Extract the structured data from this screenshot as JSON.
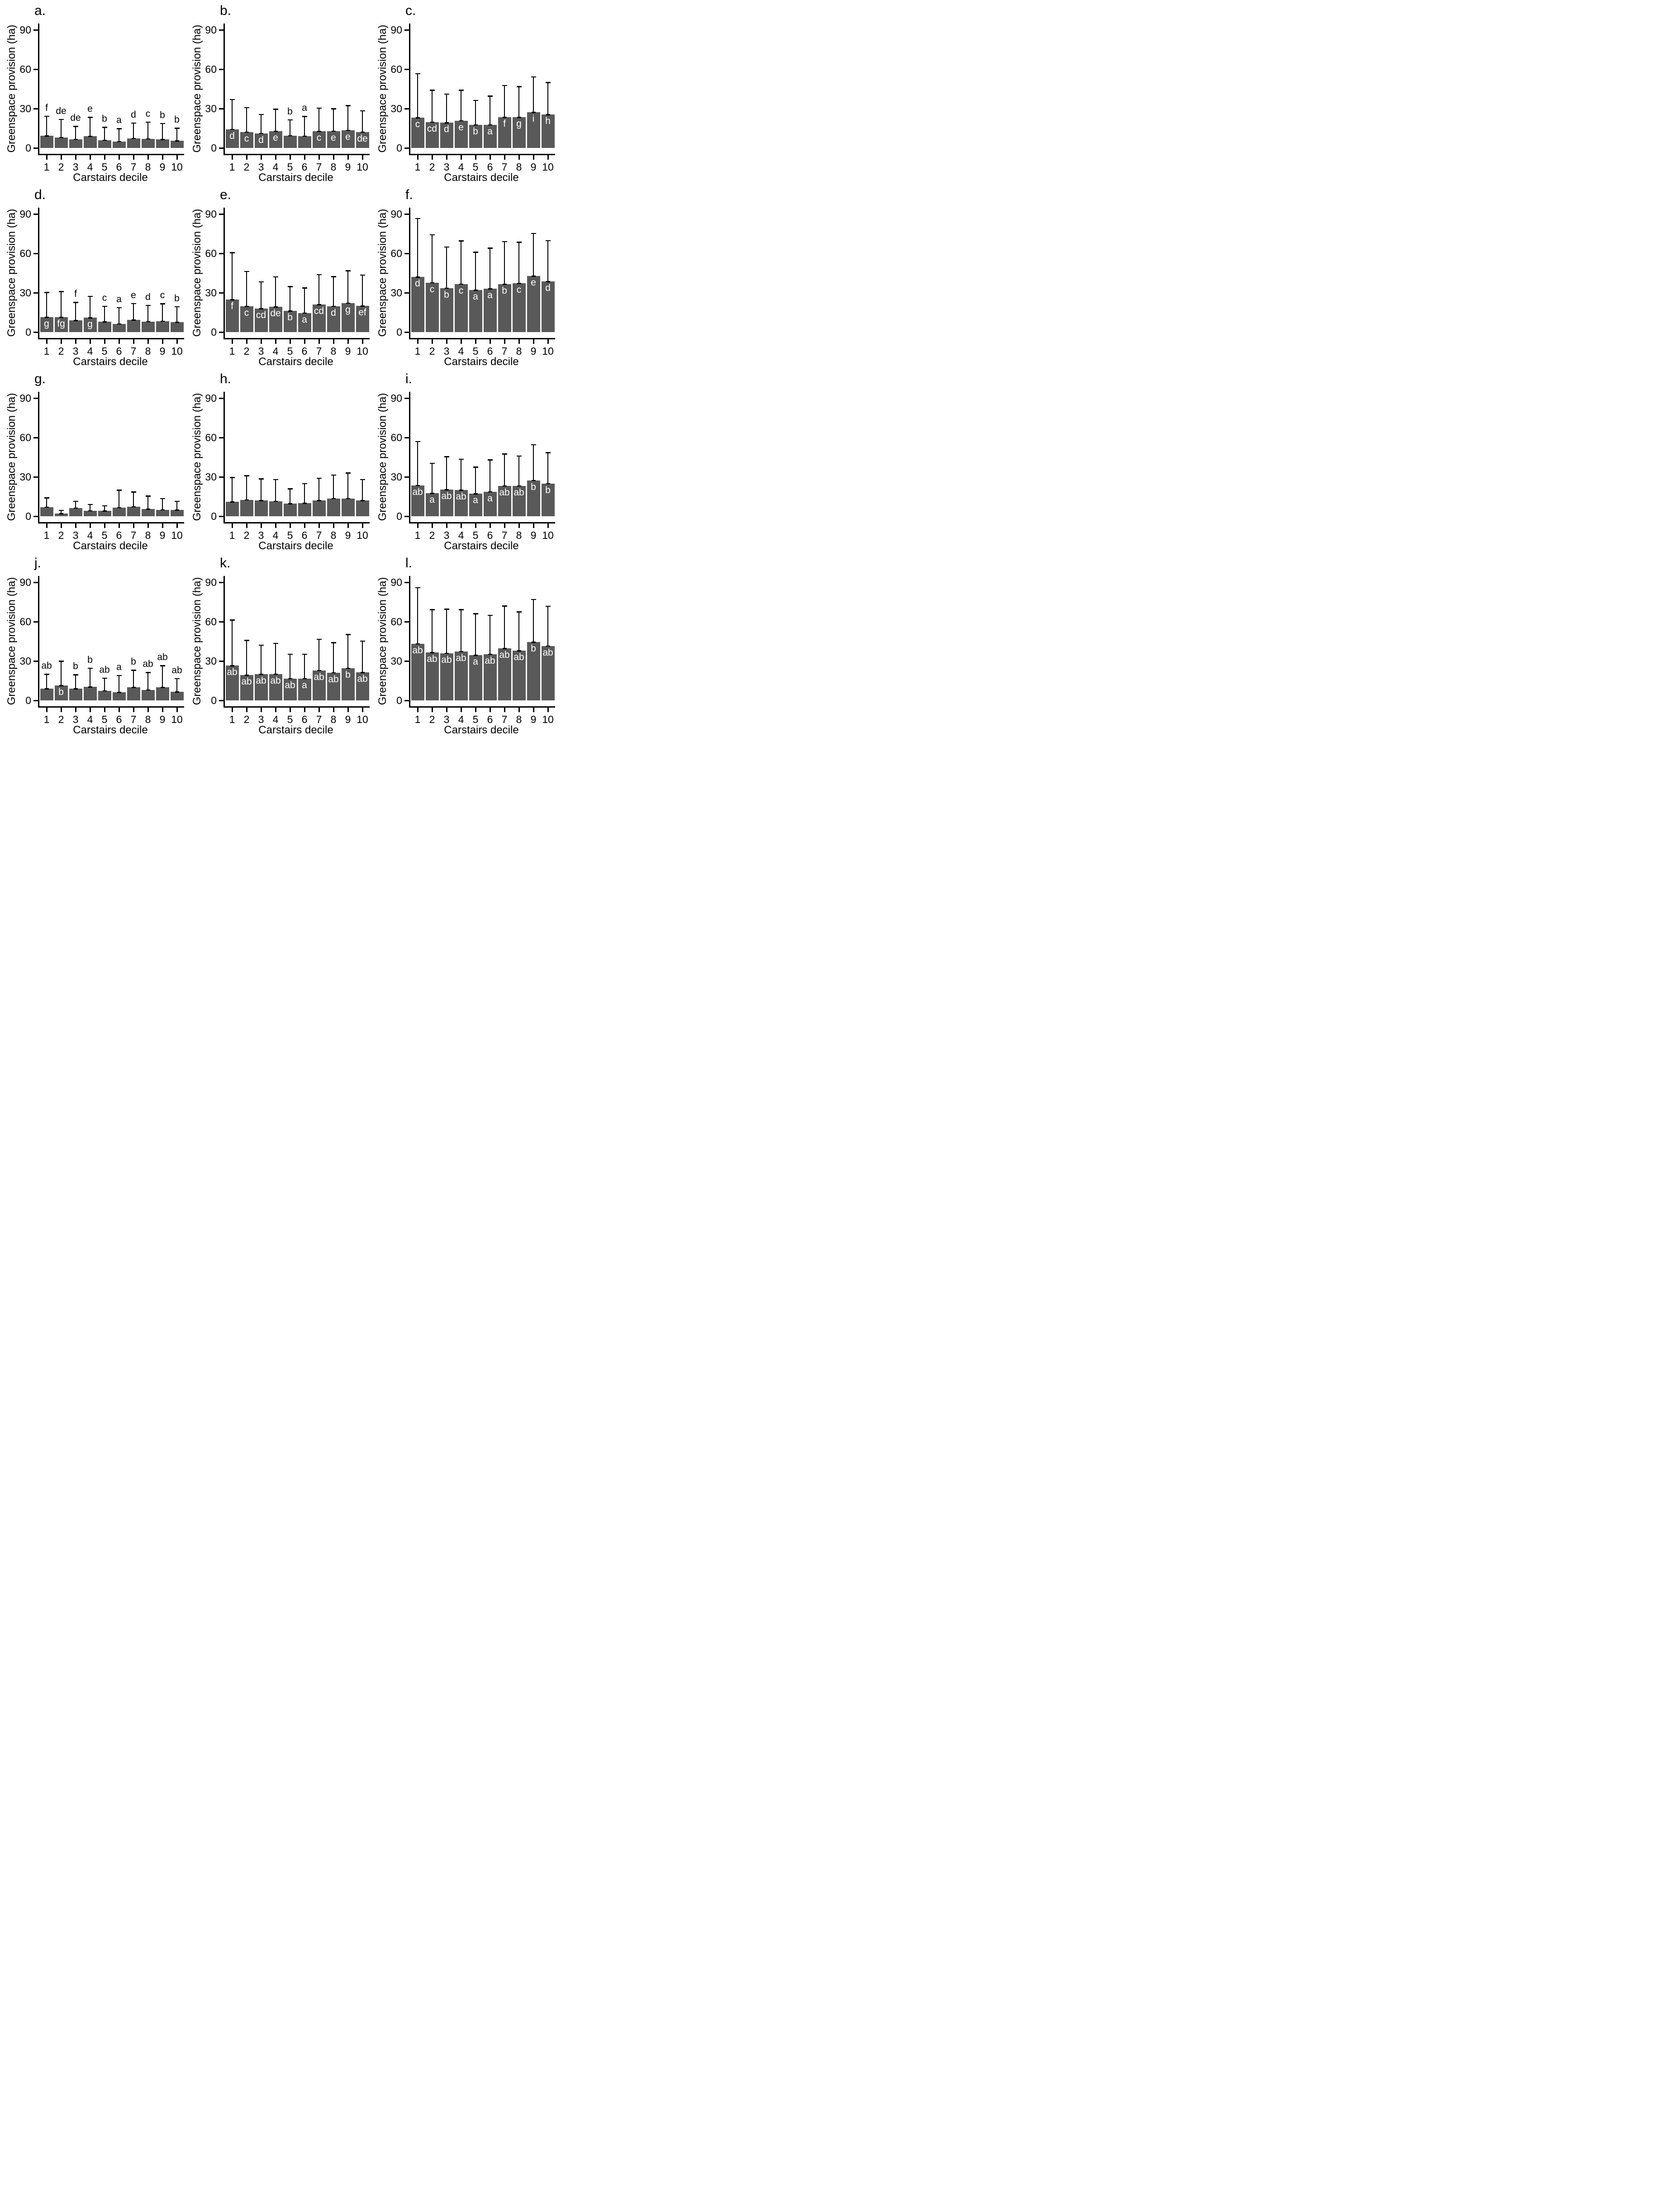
{
  "figure": {
    "description": "Twelve-panel bar chart figure of greenspace provision by Carstairs decile",
    "rows": 4,
    "cols": 3
  },
  "chart_data": {
    "type": "bar",
    "xlabel": "Carstairs decile",
    "ylabel": "Greenspace provision (ha)",
    "categories": [
      1,
      2,
      3,
      4,
      5,
      6,
      7,
      8,
      9,
      10
    ],
    "yticks": [
      0,
      30,
      60,
      90
    ],
    "ylim": [
      0,
      95
    ],
    "grid": false,
    "legend": "none",
    "bar_color": "#595959",
    "error_bar_color": "#000000",
    "sig_letter_color_above": "#000000",
    "sig_letter_color_inside": "#ffffff",
    "panels": [
      {
        "id": "a",
        "title": "a.",
        "values": [
          9.3,
          8.1,
          6.6,
          8.8,
          5.9,
          4.9,
          7.3,
          7.0,
          6.4,
          5.5
        ],
        "error_upper": [
          24.3,
          21.8,
          16.4,
          23.4,
          15.8,
          14.7,
          19.1,
          19.8,
          18.7,
          15.1
        ],
        "letters": [
          "f",
          "de",
          "de",
          "e",
          "b",
          "a",
          "d",
          "c",
          "b",
          "b"
        ],
        "letter_pos": [
          "above",
          "above",
          "above",
          "above",
          "above",
          "above",
          "above",
          "above",
          "above",
          "above"
        ]
      },
      {
        "id": "b",
        "title": "b.",
        "values": [
          14.3,
          12.2,
          11.1,
          12.6,
          9.4,
          9.0,
          12.6,
          12.9,
          13.6,
          12.2
        ],
        "error_upper": [
          37.0,
          30.8,
          25.6,
          29.5,
          21.5,
          24.0,
          30.5,
          30.0,
          32.4,
          28.4
        ],
        "letters": [
          "d",
          "c",
          "d",
          "e",
          "b",
          "a",
          "c",
          "e",
          "e",
          "de"
        ],
        "letter_pos": [
          "in",
          "in",
          "in",
          "in",
          "above",
          "above",
          "in",
          "in",
          "in",
          "in"
        ]
      },
      {
        "id": "c",
        "title": "c.",
        "values": [
          23.1,
          19.8,
          19.2,
          20.7,
          17.6,
          17.6,
          23.4,
          23.4,
          27.1,
          25.4
        ],
        "error_upper": [
          56.6,
          44.0,
          41.2,
          44.1,
          36.3,
          39.5,
          47.7,
          46.8,
          54.2,
          49.9
        ],
        "letters": [
          "c",
          "cd",
          "d",
          "e",
          "b",
          "a",
          "f",
          "g",
          "i",
          "h"
        ],
        "letter_pos": [
          "in",
          "in",
          "in",
          "in",
          "in",
          "in",
          "in",
          "in",
          "in",
          "in"
        ]
      },
      {
        "id": "d",
        "title": "d.",
        "values": [
          11.3,
          11.3,
          8.8,
          10.9,
          7.8,
          6.3,
          9.3,
          8.0,
          8.4,
          7.5
        ],
        "error_upper": [
          30.2,
          31.0,
          22.7,
          27.4,
          19.8,
          18.7,
          21.8,
          20.5,
          21.6,
          19.4
        ],
        "letters": [
          "g",
          "fg",
          "f",
          "g",
          "c",
          "a",
          "e",
          "d",
          "c",
          "b"
        ],
        "letter_pos": [
          "in",
          "in",
          "above",
          "in",
          "above",
          "above",
          "above",
          "above",
          "above",
          "above"
        ]
      },
      {
        "id": "e",
        "title": "e.",
        "values": [
          24.7,
          19.5,
          17.8,
          19.2,
          16.1,
          14.6,
          20.9,
          19.8,
          22.2,
          20.0
        ],
        "error_upper": [
          60.6,
          46.3,
          38.4,
          42.1,
          34.7,
          33.7,
          43.9,
          42.3,
          46.8,
          43.5
        ],
        "letters": [
          "f",
          "c",
          "cd",
          "de",
          "b",
          "a",
          "cd",
          "d",
          "g",
          "ef"
        ],
        "letter_pos": [
          "in",
          "in",
          "in",
          "in",
          "in",
          "in",
          "in",
          "in",
          "in",
          "in"
        ]
      },
      {
        "id": "f",
        "title": "f.",
        "values": [
          42.0,
          37.6,
          33.6,
          36.7,
          32.0,
          33.1,
          36.4,
          37.1,
          42.7,
          38.6
        ],
        "error_upper": [
          86.6,
          74.3,
          65.0,
          69.5,
          60.9,
          64.1,
          69.0,
          68.5,
          75.2,
          69.8
        ],
        "letters": [
          "d",
          "c",
          "b",
          "c",
          "a",
          "a",
          "b",
          "c",
          "e",
          "d"
        ],
        "letter_pos": [
          "in",
          "in",
          "in",
          "in",
          "in",
          "in",
          "in",
          "in",
          "in",
          "in"
        ]
      },
      {
        "id": "g",
        "title": "g.",
        "values": [
          7.0,
          2.0,
          6.3,
          4.2,
          4.0,
          6.6,
          7.3,
          5.5,
          5.0,
          4.8
        ],
        "error_upper": [
          14.0,
          4.5,
          11.5,
          9.0,
          8.0,
          20.0,
          18.5,
          15.5,
          13.5,
          11.5
        ],
        "letters": [],
        "letter_pos": []
      },
      {
        "id": "h",
        "title": "h.",
        "values": [
          11.0,
          12.5,
          12.0,
          11.5,
          9.5,
          10.0,
          12.0,
          13.5,
          13.5,
          12.0
        ],
        "error_upper": [
          29.5,
          31.0,
          28.5,
          28.0,
          21.0,
          25.0,
          29.0,
          31.5,
          33.0,
          28.0
        ],
        "letters": [],
        "letter_pos": []
      },
      {
        "id": "i",
        "title": "i.",
        "values": [
          23.5,
          17.5,
          20.3,
          20.0,
          17.2,
          18.7,
          23.2,
          23.2,
          27.4,
          24.9
        ],
        "error_upper": [
          57.0,
          40.5,
          45.5,
          43.5,
          37.5,
          43.0,
          47.5,
          46.0,
          54.5,
          48.5
        ],
        "letters": [
          "ab",
          "a",
          "ab",
          "ab",
          "a",
          "a",
          "ab",
          "ab",
          "b",
          "b"
        ],
        "letter_pos": [
          "in",
          "in",
          "in",
          "in",
          "in",
          "in",
          "in",
          "in",
          "in",
          "in"
        ]
      },
      {
        "id": "j",
        "title": "j.",
        "values": [
          8.8,
          11.3,
          8.8,
          10.2,
          7.4,
          6.2,
          9.9,
          8.0,
          9.9,
          6.5
        ],
        "error_upper": [
          20.0,
          30.0,
          19.5,
          24.5,
          17.0,
          19.0,
          23.0,
          21.3,
          26.4,
          16.7
        ],
        "letters": [
          "ab",
          "b",
          "b",
          "b",
          "ab",
          "a",
          "b",
          "ab",
          "ab",
          "ab"
        ],
        "letter_pos": [
          "above",
          "in",
          "above",
          "above",
          "above",
          "above",
          "above",
          "above",
          "above",
          "above"
        ]
      },
      {
        "id": "k",
        "title": "k.",
        "values": [
          26.4,
          19.3,
          19.9,
          20.1,
          16.7,
          16.7,
          22.9,
          21.1,
          24.6,
          21.3
        ],
        "error_upper": [
          61.3,
          45.8,
          42.2,
          43.5,
          35.3,
          35.3,
          46.7,
          44.0,
          50.3,
          45.3
        ],
        "letters": [
          "ab",
          "ab",
          "ab",
          "ab",
          "ab",
          "a",
          "ab",
          "ab",
          "b",
          "ab"
        ],
        "letter_pos": [
          "in",
          "in",
          "in",
          "in",
          "in",
          "in",
          "in",
          "in",
          "in",
          "in"
        ]
      },
      {
        "id": "l",
        "title": "l.",
        "values": [
          43.2,
          36.5,
          35.9,
          37.3,
          34.4,
          35.3,
          39.5,
          37.9,
          44.4,
          41.4
        ],
        "error_upper": [
          86.0,
          69.3,
          69.5,
          69.3,
          66.2,
          65.0,
          72.0,
          67.5,
          77.0,
          71.8
        ],
        "letters": [
          "ab",
          "ab",
          "ab",
          "ab",
          "a",
          "ab",
          "ab",
          "ab",
          "b",
          "ab"
        ],
        "letter_pos": [
          "in",
          "in",
          "in",
          "in",
          "in",
          "in",
          "in",
          "in",
          "in",
          "in"
        ]
      }
    ]
  }
}
